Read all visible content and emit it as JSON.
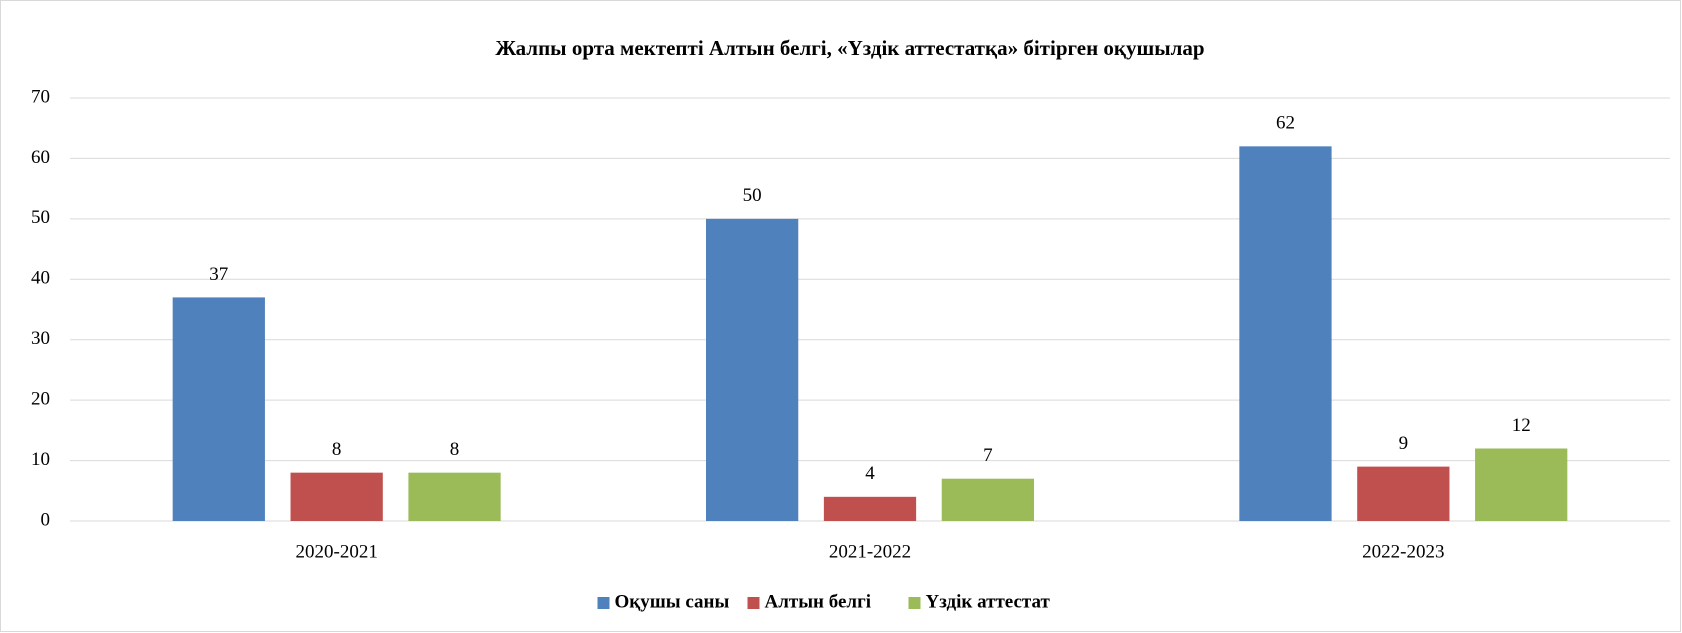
{
  "chart_data": {
    "type": "bar",
    "title": "Жалпы орта мектепті  Алтын белгі,  «Үздік аттестатқа» бітірген оқушылар",
    "categories": [
      "2020-2021",
      "2021-2022",
      "2022-2023"
    ],
    "series": [
      {
        "name": "Оқушы саны",
        "color": "#4f81bd",
        "values": [
          37,
          50,
          62
        ]
      },
      {
        "name": "Алтын белгі",
        "color": "#c0504d",
        "values": [
          8,
          4,
          9
        ]
      },
      {
        "name": "Үздік аттестат",
        "color": "#9bbb59",
        "values": [
          8,
          7,
          12
        ]
      }
    ],
    "ylim": [
      0,
      70
    ],
    "yticks": [
      0,
      10,
      20,
      30,
      40,
      50,
      60,
      70
    ],
    "grid": true,
    "legend": "bottom"
  }
}
